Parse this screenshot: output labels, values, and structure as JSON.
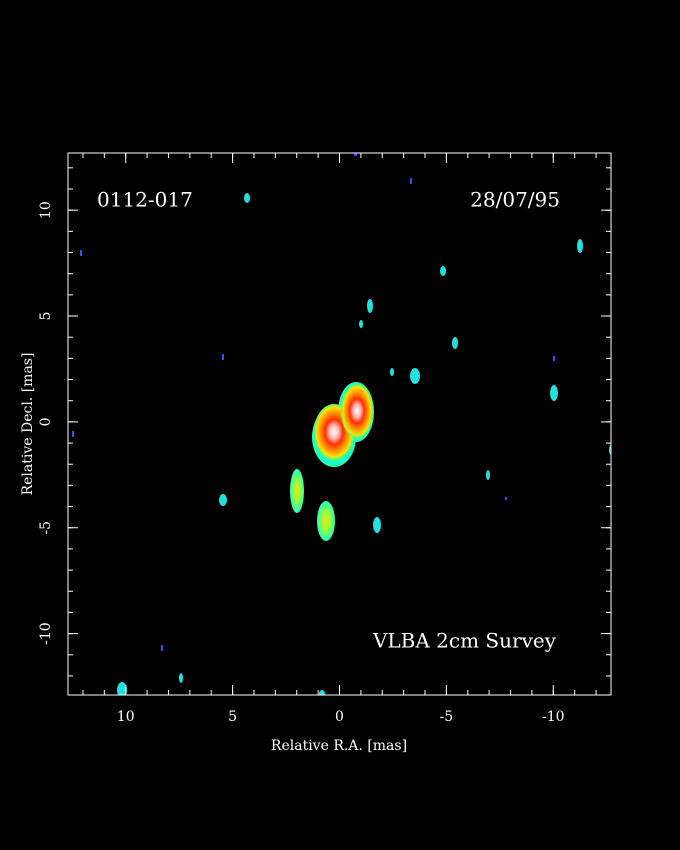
{
  "chart_data": {
    "type": "image",
    "annotations": [
      "0112-017",
      "28/07/95",
      "VLBA 2cm Survey"
    ],
    "xlabel": "Relative R.A. [mas]",
    "ylabel": "Relative Decl. [mas]",
    "xlim": [
      12.7,
      -12.7
    ],
    "ylim": [
      -12.9,
      12.7
    ],
    "xticks": [
      10,
      5,
      0,
      -5,
      -10
    ],
    "yticks": [
      -10,
      -5,
      0,
      5,
      10
    ],
    "xminor": [
      12,
      11,
      10,
      9,
      8,
      7,
      6,
      5,
      4,
      3,
      2,
      1,
      0,
      -1,
      -2,
      -3,
      -4,
      -5,
      -6,
      -7,
      -8,
      -9,
      -10,
      -11,
      -12
    ],
    "yminor": [
      -12,
      -11,
      -10,
      -9,
      -8,
      -7,
      -6,
      -5,
      -4,
      -3,
      -2,
      -1,
      0,
      1,
      2,
      3,
      4,
      5,
      6,
      7,
      8,
      9,
      10,
      11,
      12
    ]
  }
}
